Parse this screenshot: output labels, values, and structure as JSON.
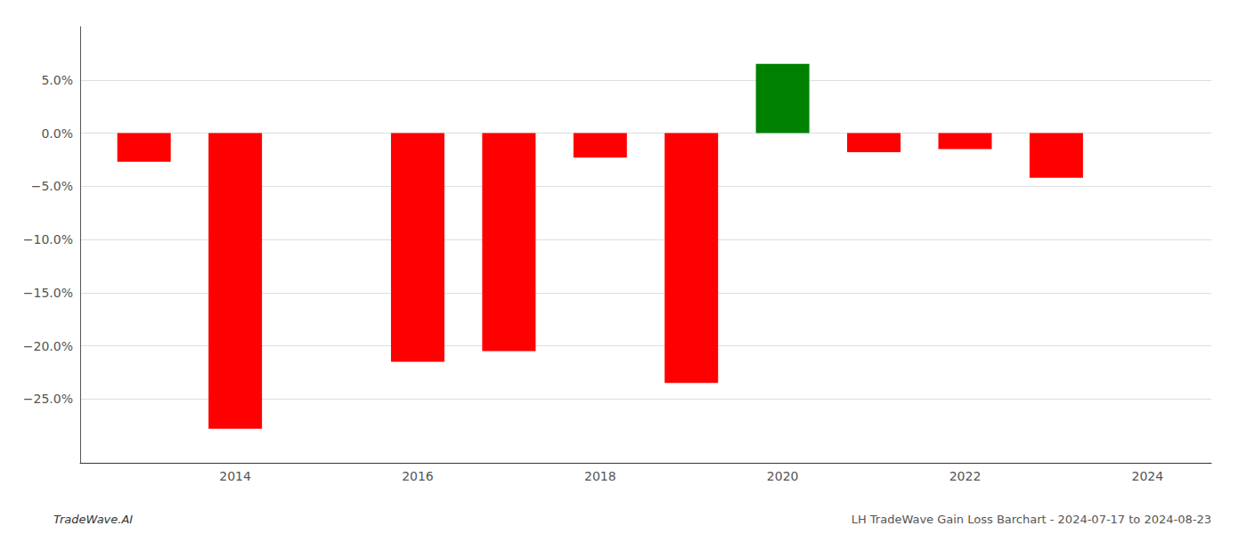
{
  "chart_data": {
    "type": "bar",
    "x": [
      2013,
      2014,
      2016,
      2017,
      2018,
      2019,
      2020,
      2021,
      2022,
      2023
    ],
    "values": [
      -0.027,
      -0.278,
      -0.215,
      -0.205,
      -0.023,
      -0.235,
      0.065,
      -0.018,
      -0.015,
      -0.042
    ],
    "colors": [
      "#ff0000",
      "#ff0000",
      "#ff0000",
      "#ff0000",
      "#ff0000",
      "#ff0000",
      "#008000",
      "#ff0000",
      "#ff0000",
      "#ff0000"
    ],
    "xlim": [
      2012.3,
      2024.7
    ],
    "xticks": [
      2014,
      2016,
      2018,
      2020,
      2022,
      2024
    ],
    "ylim": [
      -0.31,
      0.1
    ],
    "yticks": [
      {
        "value": -0.25,
        "label": "−25.0%"
      },
      {
        "value": -0.2,
        "label": "−20.0%"
      },
      {
        "value": -0.15,
        "label": "−15.0%"
      },
      {
        "value": -0.1,
        "label": "−10.0%"
      },
      {
        "value": -0.05,
        "label": "−5.0%"
      },
      {
        "value": 0.0,
        "label": "0.0%"
      },
      {
        "value": 0.05,
        "label": "5.0%"
      }
    ],
    "grid": true,
    "annotations": [
      "TradeWave.AI",
      "LH TradeWave Gain Loss Barchart - 2024-07-17 to 2024-08-23"
    ]
  }
}
